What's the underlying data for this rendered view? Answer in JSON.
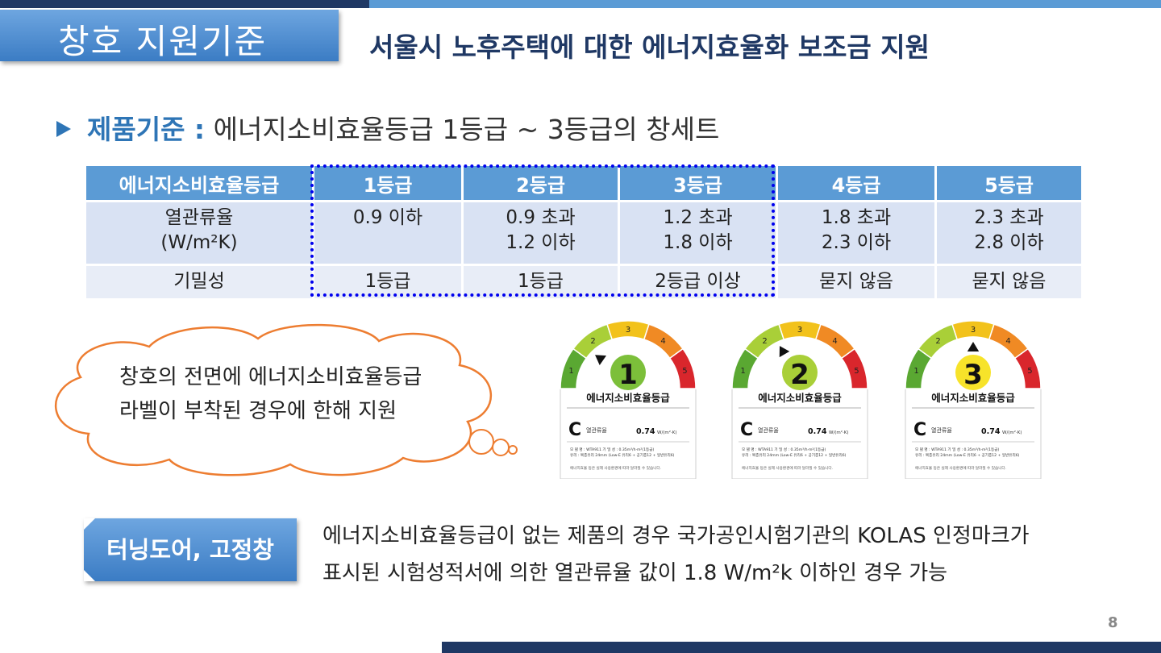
{
  "slide": {
    "title": "창호 지원기준",
    "subtitle": "서울시 노후주택에 대한 에너지효율화 보조금 지원",
    "criterion_label": "제품기준 :",
    "criterion_text": " 에너지소비효율등급 1등급 ~ 3등급의 창세트",
    "page_number": "8",
    "accent_colors": {
      "dark_navy": "#1f3864",
      "blue": "#5b9bd5",
      "label_blue": "#2e75b6",
      "highlight_dotted": "#0000ee",
      "cloud_orange": "#ed7d31"
    }
  },
  "table": {
    "headers": [
      "에너지소비효율등급",
      "1등급",
      "2등급",
      "3등급",
      "4등급",
      "5등급"
    ],
    "rows": [
      {
        "label_line1": "열관류율",
        "label_line2": "(W/m²K)",
        "cells": [
          [
            "0.9 이하",
            ""
          ],
          [
            "0.9 초과",
            "1.2 이하"
          ],
          [
            "1.2 초과",
            "1.8 이하"
          ],
          [
            "1.8 초과",
            "2.3 이하"
          ],
          [
            "2.3 초과",
            "2.8 이하"
          ]
        ]
      },
      {
        "label_line1": "기밀성",
        "label_line2": "",
        "cells": [
          [
            "1등급",
            ""
          ],
          [
            "1등급",
            ""
          ],
          [
            "2등급 이상",
            ""
          ],
          [
            "묻지 않음",
            ""
          ],
          [
            "묻지 않음",
            ""
          ]
        ]
      }
    ],
    "highlighted_grades": [
      "1등급",
      "2등급",
      "3등급"
    ]
  },
  "cloud": {
    "line1": "창호의 전면에 에너지소비효율등급",
    "line2": "라벨이 부착된 경우에 한해 지원"
  },
  "labels": [
    {
      "grade": "1",
      "title": "에너지소비효율등급",
      "value_label": "열관류율",
      "value": "0.74",
      "unit": "W/(m²·K)",
      "model": "모 델 명 : WTA911   기 밀 성 : 0.35m³/h·m²(1등급)",
      "glass": "유리 : 복층유리 24mm (Low-E 유리6 + 공기층12 + 일반유리6)",
      "footnote": "에너지효율 등은 실제 사용환경에 따라 달라질 수 있습니다.",
      "ticks": [
        "1",
        "2",
        "3",
        "4",
        "5"
      ],
      "pointer_angle_deg": 215,
      "center_color": "#7cbf3a"
    },
    {
      "grade": "2",
      "title": "에너지소비효율등급",
      "value_label": "열관류율",
      "value": "0.74",
      "unit": "W/(m²·K)",
      "model": "모 델 명 : WTA911   기 밀 성 : 0.35m³/h·m²(1등급)",
      "glass": "유리 : 복층유리 24mm (Low-E 유리6 + 공기층12 + 일반유리6)",
      "footnote": "에너지효율 등은 실제 사용환경에 따라 달라질 수 있습니다.",
      "ticks": [
        "1",
        "2",
        "3",
        "4",
        "5"
      ],
      "pointer_angle_deg": 240,
      "center_color": "#a9cf38"
    },
    {
      "grade": "3",
      "title": "에너지소비효율등급",
      "value_label": "열관류율",
      "value": "0.74",
      "unit": "W/(m²·K)",
      "model": "모 델 명 : WTA911   기 밀 성 : 0.35m³/h·m²(1등급)",
      "glass": "유리 : 복층유리 24mm (Low-E 유리6 + 공기층12 + 일반유리6)",
      "footnote": "에너지효율 등은 실제 사용환경에 따라 달라질 수 있습니다.",
      "ticks": [
        "1",
        "2",
        "3",
        "4",
        "5"
      ],
      "pointer_angle_deg": 270,
      "center_color": "#f7e32a"
    }
  ],
  "bottom": {
    "tag": "터닝도어, 고정창",
    "note_line1": "에너지소비효율등급이 없는 제품의 경우 국가공인시험기관의 KOLAS 인정마크가",
    "note_line2": "표시된 시험성적서에 의한 열관류율 값이 1.8 W/m²k 이하인 경우 가능"
  }
}
